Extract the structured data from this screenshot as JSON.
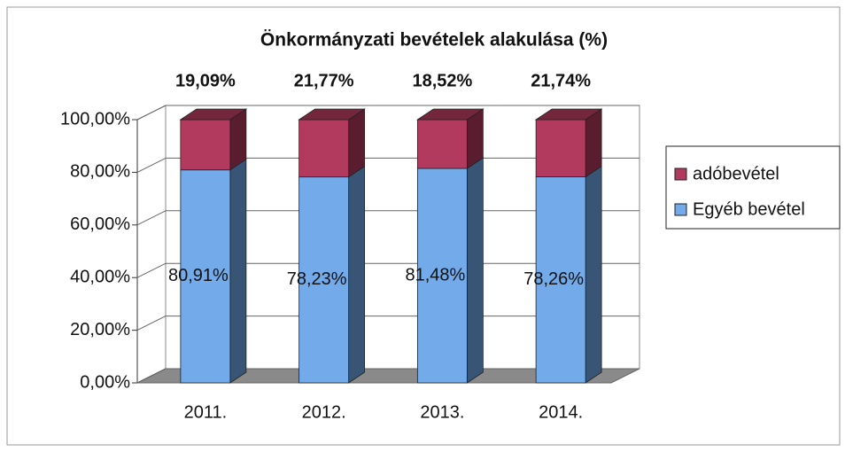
{
  "chart_data": {
    "type": "bar3d_stacked",
    "title": "Önkormányzati bevételek alakulása (%)",
    "categories": [
      "2011.",
      "2012.",
      "2013.",
      "2014."
    ],
    "series": [
      {
        "name": "Egyéb bevétel",
        "color": "#72aaea",
        "values": [
          80.91,
          78.23,
          81.48,
          78.26
        ],
        "value_labels": [
          "80,91%",
          "78,23%",
          "81,48%",
          "78,26%"
        ]
      },
      {
        "name": "adóbevétel",
        "color": "#b23a5e",
        "values": [
          19.09,
          21.77,
          18.52,
          21.74
        ],
        "value_labels": [
          "19,09%",
          "21,77%",
          "18,52%",
          "21,74%"
        ]
      }
    ],
    "ylim": [
      0,
      100
    ],
    "yticks": [
      {
        "value": 0,
        "label": "0,00%"
      },
      {
        "value": 20,
        "label": "20,00%"
      },
      {
        "value": 40,
        "label": "40,00%"
      },
      {
        "value": 60,
        "label": "60,00%"
      },
      {
        "value": 80,
        "label": "80,00%"
      },
      {
        "value": 100,
        "label": "100,00%"
      }
    ],
    "grid": true,
    "legend": "right"
  }
}
